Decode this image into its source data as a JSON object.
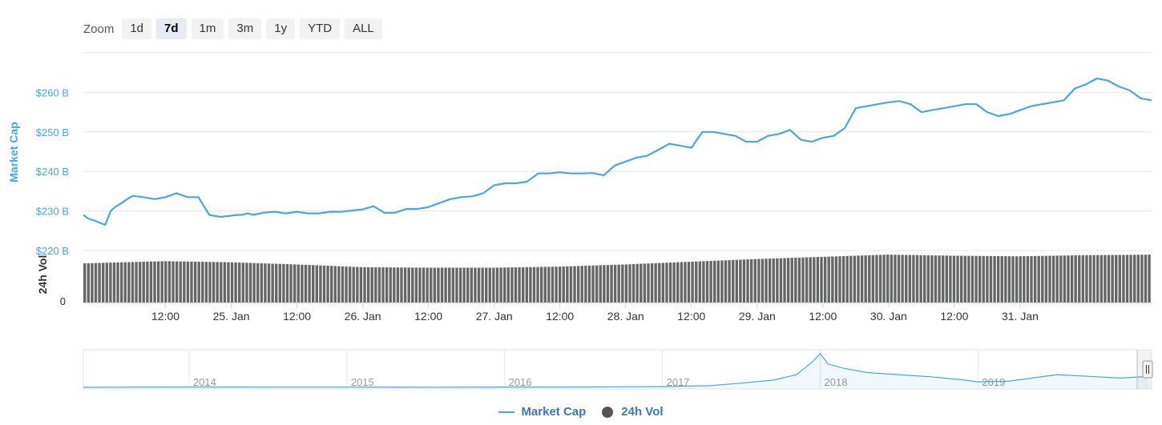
{
  "zoom": {
    "label": "Zoom",
    "buttons": [
      "1d",
      "7d",
      "1m",
      "3m",
      "1y",
      "YTD",
      "ALL"
    ],
    "active": "7d"
  },
  "colors": {
    "market_cap": "#4aa7d9",
    "volume": "#666666",
    "grid": "#e6e6e6",
    "axis_text": "#4aa7d9"
  },
  "legend": {
    "market_cap": "Market Cap",
    "volume": "24h Vol"
  },
  "chart_data": {
    "type": "line",
    "ylabel": "Market Cap",
    "y2label": "24h Vol",
    "ylim": [
      220,
      270
    ],
    "yticks": [
      "$220 B",
      "$230 B",
      "$240 B",
      "$250 B",
      "$260 B"
    ],
    "y2ticks": [
      "0"
    ],
    "xticks": [
      "12:00",
      "25. Jan",
      "12:00",
      "26. Jan",
      "12:00",
      "27. Jan",
      "12:00",
      "28. Jan",
      "12:00",
      "29. Jan",
      "12:00",
      "30. Jan",
      "12:00",
      "31. Jan"
    ],
    "xlim_hours": [
      -15,
      180
    ],
    "series": [
      {
        "name": "Market Cap",
        "unit": "billion USD",
        "x_hours": [
          -15,
          -14,
          -13,
          -12,
          -11,
          -10,
          -9,
          -8,
          -7,
          -6,
          -4,
          -2,
          0,
          2,
          4,
          6,
          8,
          10,
          12,
          13,
          14,
          15,
          16,
          18,
          20,
          22,
          24,
          26,
          28,
          30,
          32,
          34,
          36,
          38,
          40,
          42,
          44,
          46,
          48,
          50,
          52,
          54,
          56,
          58,
          60,
          62,
          64,
          66,
          68,
          70,
          72,
          74,
          76,
          78,
          80,
          82,
          84,
          86,
          88,
          90,
          92,
          94,
          96,
          98,
          100,
          102,
          104,
          106,
          108,
          110,
          112,
          114,
          116,
          118,
          120,
          122,
          124,
          126,
          128,
          130,
          132,
          134,
          136,
          138,
          140,
          142,
          144,
          146,
          148,
          150,
          152,
          154,
          156,
          158,
          160,
          162,
          164,
          166,
          168,
          170,
          172,
          174,
          176,
          178,
          180
        ],
        "values": [
          229.0,
          228.0,
          227.6,
          227.0,
          226.5,
          230.0,
          231.2,
          232.0,
          233.0,
          233.8,
          233.5,
          233.0,
          233.5,
          234.5,
          233.5,
          233.5,
          229.0,
          228.5,
          228.8,
          229.0,
          229.0,
          229.4,
          229.0,
          229.6,
          229.8,
          229.4,
          229.8,
          229.4,
          229.4,
          229.8,
          229.8,
          230.1,
          230.4,
          231.2,
          229.5,
          229.6,
          230.5,
          230.5,
          231.0,
          232.0,
          233.0,
          233.5,
          233.7,
          234.5,
          236.5,
          237.0,
          237.0,
          237.4,
          239.5,
          239.5,
          239.8,
          239.5,
          239.5,
          239.6,
          239.0,
          241.5,
          242.5,
          243.5,
          244.0,
          245.5,
          247.0,
          246.5,
          246.0,
          250.0,
          250.0,
          249.5,
          249.0,
          247.5,
          247.5,
          249.0,
          249.5,
          250.5,
          248.0,
          247.5,
          248.5,
          249.0,
          251.0,
          256.0,
          256.5,
          257.0,
          257.5,
          257.8,
          257.0,
          255.0,
          255.5,
          256.0,
          256.5,
          257.0,
          257.0,
          255.0,
          254.0,
          254.5,
          255.5,
          256.5,
          257.0,
          257.5,
          258.0,
          261.0,
          262.0,
          263.5,
          263.0,
          261.5,
          260.5,
          258.5,
          258.0
        ]
      },
      {
        "name": "24h Vol",
        "unit": "relative",
        "x_hours": [
          -15,
          0,
          12,
          24,
          36,
          48,
          60,
          72,
          84,
          96,
          108,
          120,
          132,
          144,
          156,
          168,
          180
        ],
        "values": [
          0.72,
          0.76,
          0.74,
          0.7,
          0.65,
          0.64,
          0.64,
          0.66,
          0.7,
          0.75,
          0.8,
          0.84,
          0.88,
          0.86,
          0.85,
          0.87,
          0.88
        ]
      }
    ],
    "navigator": {
      "labels": [
        "2014",
        "2015",
        "2016",
        "2017",
        "2018",
        "2019"
      ],
      "x_years": [
        2013.33,
        2014.0,
        2014.5,
        2015.0,
        2015.5,
        2016.0,
        2016.5,
        2017.0,
        2017.3,
        2017.5,
        2017.7,
        2017.85,
        2017.95,
        2018.0,
        2018.05,
        2018.15,
        2018.3,
        2018.5,
        2018.7,
        2018.9,
        2019.0,
        2019.2,
        2019.5,
        2019.7,
        2019.9,
        2020.08
      ],
      "values": [
        1,
        10,
        6,
        5,
        4,
        7,
        10,
        18,
        40,
        100,
        170,
        300,
        600,
        800,
        550,
        450,
        350,
        300,
        250,
        180,
        130,
        150,
        300,
        260,
        220,
        258
      ],
      "ylim": [
        0,
        850
      ],
      "xlim": [
        2013.33,
        2020.1
      ]
    }
  }
}
